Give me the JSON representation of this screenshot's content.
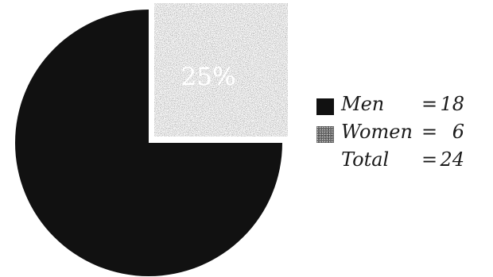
{
  "chart_data": {
    "type": "pie",
    "title": "",
    "slices": [
      {
        "label": "Men",
        "value": 18,
        "color": "#111111"
      },
      {
        "label": "Women",
        "value": 6,
        "color": "#6a6a6a",
        "pattern": "stippled"
      }
    ],
    "data_labels": [
      {
        "slice": "Women",
        "text": "25%"
      }
    ],
    "legend": {
      "placement": "right",
      "rows": [
        {
          "label": "Men",
          "operator": "=",
          "value": "18",
          "swatch": "men"
        },
        {
          "label": "Women",
          "operator": "=",
          "value": "6",
          "swatch": "women"
        },
        {
          "label": "Total",
          "operator": "=",
          "value": "24",
          "swatch": "none"
        }
      ]
    }
  }
}
